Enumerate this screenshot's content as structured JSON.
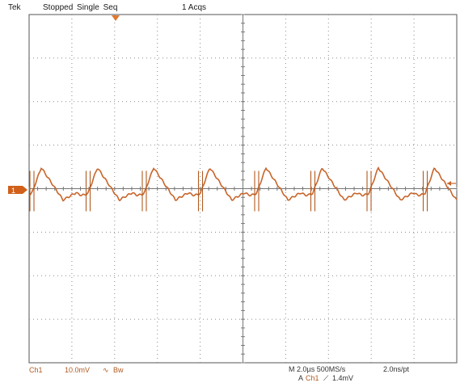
{
  "header": {
    "brand": "Tek",
    "status": "Stopped Single Seq",
    "acquisitions": "1 Acqs"
  },
  "channel": {
    "marker": "1",
    "name": "Ch1",
    "scale": "10.0mV",
    "coupling_icon": "coupling-symbol-icon",
    "coupling_glyph": "∿",
    "bandwidth_label": "Bw"
  },
  "timebase": {
    "text": "M 2.0µs 500MS/s",
    "time_per_point": "2.0ns/pt"
  },
  "trigger": {
    "prefix": "A",
    "source": "Ch1",
    "slope_glyph": "⟋",
    "level": "1.4mV"
  },
  "colors": {
    "trace": "#c8652a",
    "trace_dark": "#b05a20",
    "grid": "#8a8a8a",
    "ground_marker": "#d0601a",
    "trigger_marker": "#e07830"
  }
}
